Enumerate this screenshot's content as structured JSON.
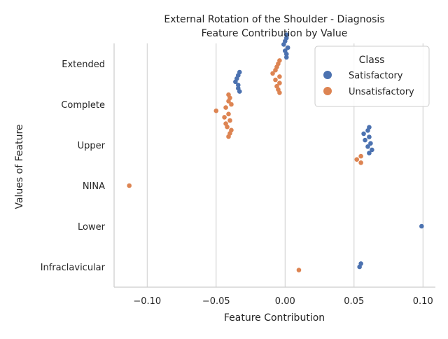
{
  "chart_data": {
    "type": "scatter",
    "subtype": "swarm",
    "title": "External Rotation of the Shoulder - Diagnosis",
    "subtitle": "Feature Contribution by Value",
    "xlabel": "Feature Contribution",
    "ylabel": "Values of Feature",
    "xlim": [
      -0.124,
      0.109
    ],
    "xticks": [
      -0.1,
      -0.05,
      0.0,
      0.05,
      0.1
    ],
    "xtick_labels": [
      "−0.10",
      "−0.05",
      "0.00",
      "0.05",
      "0.10"
    ],
    "categories": [
      "Extended",
      "Complete",
      "Upper",
      "NINA",
      "Lower",
      "Infraclavicular"
    ],
    "grid": "vertical",
    "legend": {
      "title": "Class",
      "placement": "top-right",
      "entries": [
        {
          "label": "Satisfactory",
          "color": "#4c72b0"
        },
        {
          "label": "Unsatisfactory",
          "color": "#dd8452"
        }
      ]
    },
    "series": [
      {
        "name": "Satisfactory",
        "color": "#4c72b0",
        "points": [
          {
            "category": "Extended",
            "x": 0.001
          },
          {
            "category": "Extended",
            "x": 0.001
          },
          {
            "category": "Extended",
            "x": 0.0
          },
          {
            "category": "Extended",
            "x": -0.001
          },
          {
            "category": "Extended",
            "x": 0.002
          },
          {
            "category": "Extended",
            "x": 0.0
          },
          {
            "category": "Extended",
            "x": 0.001
          },
          {
            "category": "Extended",
            "x": 0.001
          },
          {
            "category": "Complete",
            "x": -0.033
          },
          {
            "category": "Complete",
            "x": -0.034
          },
          {
            "category": "Complete",
            "x": -0.035
          },
          {
            "category": "Complete",
            "x": -0.036
          },
          {
            "category": "Complete",
            "x": -0.034
          },
          {
            "category": "Complete",
            "x": -0.034
          },
          {
            "category": "Complete",
            "x": -0.033
          },
          {
            "category": "Upper",
            "x": 0.061
          },
          {
            "category": "Upper",
            "x": 0.06
          },
          {
            "category": "Upper",
            "x": 0.057
          },
          {
            "category": "Upper",
            "x": 0.061
          },
          {
            "category": "Upper",
            "x": 0.058
          },
          {
            "category": "Upper",
            "x": 0.062
          },
          {
            "category": "Upper",
            "x": 0.06
          },
          {
            "category": "Upper",
            "x": 0.063
          },
          {
            "category": "Upper",
            "x": 0.061
          },
          {
            "category": "Lower",
            "x": 0.099
          },
          {
            "category": "Infraclavicular",
            "x": 0.055
          },
          {
            "category": "Infraclavicular",
            "x": 0.054
          }
        ]
      },
      {
        "name": "Unsatisfactory",
        "color": "#dd8452",
        "points": [
          {
            "category": "Extended",
            "x": -0.004
          },
          {
            "category": "Extended",
            "x": -0.005
          },
          {
            "category": "Extended",
            "x": -0.006
          },
          {
            "category": "Extended",
            "x": -0.007
          },
          {
            "category": "Extended",
            "x": -0.009
          },
          {
            "category": "Extended",
            "x": -0.004
          },
          {
            "category": "Extended",
            "x": -0.007
          },
          {
            "category": "Extended",
            "x": -0.004
          },
          {
            "category": "Extended",
            "x": -0.006
          },
          {
            "category": "Extended",
            "x": -0.005
          },
          {
            "category": "Extended",
            "x": -0.004
          },
          {
            "category": "Complete",
            "x": -0.041
          },
          {
            "category": "Complete",
            "x": -0.04
          },
          {
            "category": "Complete",
            "x": -0.041
          },
          {
            "category": "Complete",
            "x": -0.039
          },
          {
            "category": "Complete",
            "x": -0.043
          },
          {
            "category": "Complete",
            "x": -0.05
          },
          {
            "category": "Complete",
            "x": -0.041
          },
          {
            "category": "Complete",
            "x": -0.044
          },
          {
            "category": "Complete",
            "x": -0.04
          },
          {
            "category": "Complete",
            "x": -0.043
          },
          {
            "category": "Complete",
            "x": -0.042
          },
          {
            "category": "Complete",
            "x": -0.039
          },
          {
            "category": "Complete",
            "x": -0.04
          },
          {
            "category": "Complete",
            "x": -0.041
          },
          {
            "category": "Upper",
            "x": 0.055
          },
          {
            "category": "Upper",
            "x": 0.052
          },
          {
            "category": "Upper",
            "x": 0.055
          },
          {
            "category": "NINA",
            "x": -0.113
          },
          {
            "category": "Infraclavicular",
            "x": 0.01
          }
        ]
      }
    ]
  }
}
